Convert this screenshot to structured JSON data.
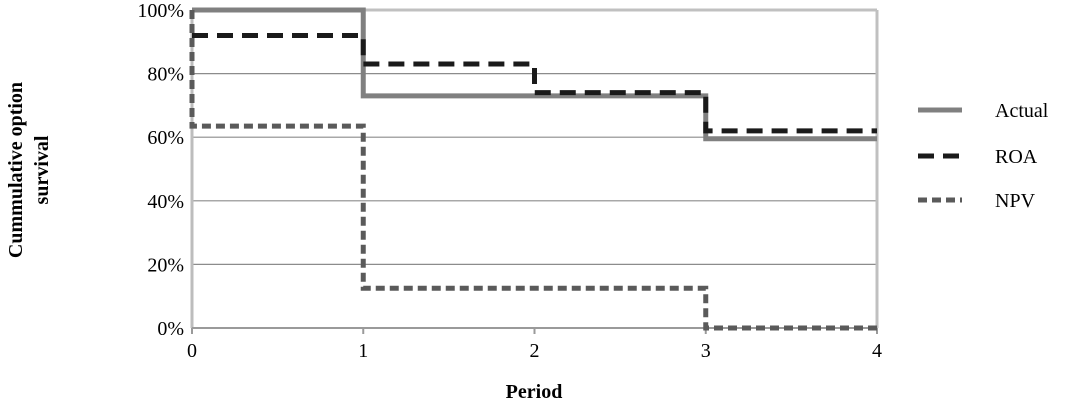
{
  "chart_data": {
    "type": "line",
    "step": true,
    "title": "",
    "xlabel": "Period",
    "ylabel": "Cummulative option survival",
    "ylabel_lines": [
      "Cummulative option",
      "survival"
    ],
    "x_ticks": [
      "0",
      "1",
      "2",
      "3",
      "4"
    ],
    "y_ticks": [
      "0%",
      "20%",
      "40%",
      "60%",
      "80%",
      "100%"
    ],
    "xlim": [
      0,
      4
    ],
    "ylim": [
      0,
      100
    ],
    "grid": "horizontal",
    "legend_position": "right",
    "series": [
      {
        "name": "Actual",
        "style": "solid",
        "color": "#808080",
        "points": [
          [
            0,
            100
          ],
          [
            1,
            100
          ],
          [
            1,
            73
          ],
          [
            3,
            73
          ],
          [
            3,
            59.5
          ],
          [
            4,
            59.5
          ]
        ]
      },
      {
        "name": "ROA",
        "style": "long-dash",
        "color": "#1a1a1a",
        "points": [
          [
            0,
            92
          ],
          [
            1,
            92
          ],
          [
            1,
            83
          ],
          [
            2,
            83
          ],
          [
            2,
            74
          ],
          [
            3,
            74
          ],
          [
            3,
            62
          ],
          [
            4,
            62
          ]
        ]
      },
      {
        "name": "NPV",
        "style": "short-dash",
        "color": "#5a5a5a",
        "points": [
          [
            0,
            100
          ],
          [
            0,
            63.5
          ],
          [
            1,
            63.5
          ],
          [
            1,
            12.5
          ],
          [
            3,
            12.5
          ],
          [
            3,
            0
          ],
          [
            4,
            0
          ]
        ]
      }
    ]
  }
}
